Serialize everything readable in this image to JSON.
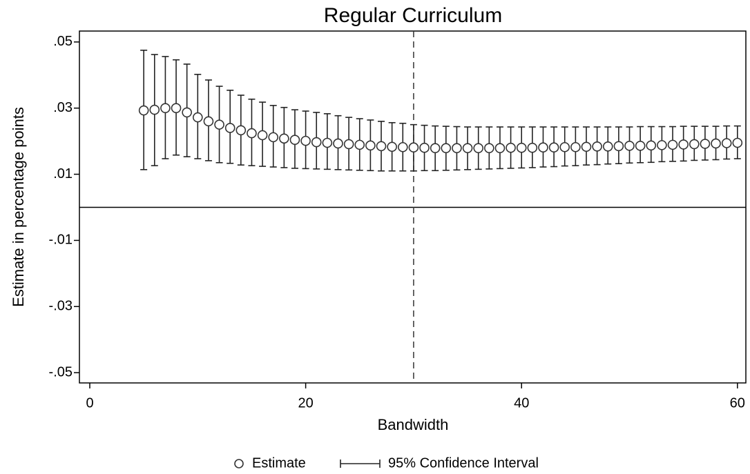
{
  "chart_data": {
    "type": "errorbar",
    "title": "Regular Curriculum",
    "x_label": "Bandwidth",
    "y_label": "Estimate in percentage points",
    "x": [
      5,
      6,
      7,
      8,
      9,
      10,
      11,
      12,
      13,
      14,
      15,
      16,
      17,
      18,
      19,
      20,
      21,
      22,
      23,
      24,
      25,
      26,
      27,
      28,
      29,
      30,
      31,
      32,
      33,
      34,
      35,
      36,
      37,
      38,
      39,
      40,
      41,
      42,
      43,
      44,
      45,
      46,
      47,
      48,
      49,
      50,
      51,
      52,
      53,
      54,
      55,
      56,
      57,
      58,
      59,
      60
    ],
    "series": [
      {
        "name": "Estimate",
        "color": "#333333",
        "values": [
          0.0293,
          0.0295,
          0.03,
          0.03,
          0.0287,
          0.0272,
          0.026,
          0.025,
          0.024,
          0.0233,
          0.0224,
          0.0218,
          0.0212,
          0.0208,
          0.0204,
          0.0201,
          0.0197,
          0.0195,
          0.0193,
          0.0191,
          0.0189,
          0.0187,
          0.0185,
          0.0183,
          0.0182,
          0.0181,
          0.018,
          0.0179,
          0.0179,
          0.0179,
          0.0179,
          0.0179,
          0.0179,
          0.0179,
          0.018,
          0.018,
          0.018,
          0.0181,
          0.0181,
          0.0182,
          0.0182,
          0.0183,
          0.0184,
          0.0184,
          0.0185,
          0.0186,
          0.0186,
          0.0187,
          0.0188,
          0.0189,
          0.019,
          0.0191,
          0.0192,
          0.0193,
          0.0194,
          0.0195
        ]
      },
      {
        "name": "95% Confidence Interval",
        "color": "#222222",
        "lower": [
          0.0114,
          0.0126,
          0.0147,
          0.0158,
          0.0153,
          0.0147,
          0.0141,
          0.0135,
          0.0133,
          0.0128,
          0.0126,
          0.0124,
          0.0122,
          0.012,
          0.0118,
          0.0117,
          0.0116,
          0.0115,
          0.0114,
          0.0113,
          0.0112,
          0.0111,
          0.011,
          0.011,
          0.011,
          0.011,
          0.0111,
          0.0111,
          0.0112,
          0.0113,
          0.0114,
          0.0115,
          0.0116,
          0.0117,
          0.0118,
          0.0119,
          0.012,
          0.0122,
          0.0123,
          0.0125,
          0.0126,
          0.0128,
          0.0129,
          0.0131,
          0.0132,
          0.0134,
          0.0135,
          0.0136,
          0.0138,
          0.0139,
          0.014,
          0.0142,
          0.0143,
          0.0144,
          0.0146,
          0.0147
        ],
        "upper": [
          0.0475,
          0.0462,
          0.0456,
          0.0446,
          0.0433,
          0.0402,
          0.0385,
          0.0366,
          0.0354,
          0.0339,
          0.0327,
          0.0318,
          0.0308,
          0.0302,
          0.0295,
          0.0291,
          0.0287,
          0.0283,
          0.0277,
          0.0272,
          0.0268,
          0.0264,
          0.026,
          0.0256,
          0.0254,
          0.025,
          0.0248,
          0.0246,
          0.0245,
          0.0244,
          0.0243,
          0.0243,
          0.0243,
          0.0243,
          0.0243,
          0.0243,
          0.0243,
          0.0243,
          0.0243,
          0.0243,
          0.0243,
          0.0243,
          0.0243,
          0.0243,
          0.0243,
          0.0243,
          0.0244,
          0.0244,
          0.0244,
          0.0244,
          0.0245,
          0.0245,
          0.0245,
          0.0245,
          0.0246,
          0.0246
        ]
      }
    ],
    "xlim": [
      -0.96,
      60.78
    ],
    "ylim": [
      -0.0531,
      0.0533
    ],
    "xticks": [
      0,
      20,
      40,
      60
    ],
    "yticks": [
      {
        "value": 0.05,
        "label": ".05"
      },
      {
        "value": 0.03,
        "label": ".03"
      },
      {
        "value": 0.01,
        "label": ".01"
      },
      {
        "value": -0.01,
        "label": "-.01"
      },
      {
        "value": -0.03,
        "label": "-.03"
      },
      {
        "value": -0.05,
        "label": "-.05"
      }
    ],
    "xline": 30,
    "yline": 0,
    "grid": false
  }
}
